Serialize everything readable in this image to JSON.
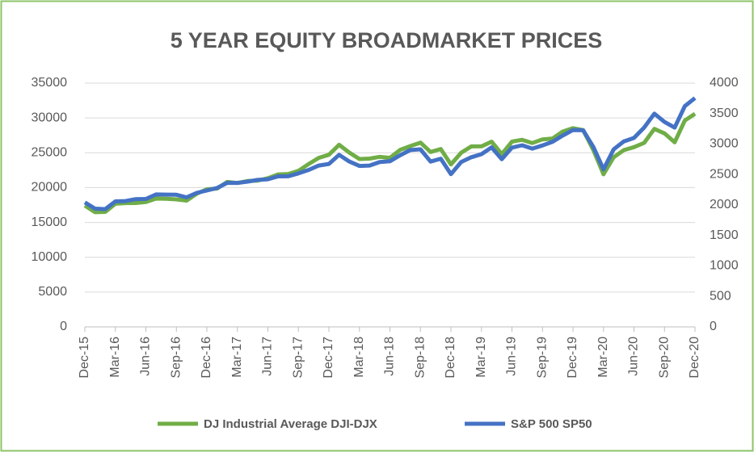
{
  "chart_data": {
    "type": "line",
    "title": "5 YEAR EQUITY BROADMARKET PRICES",
    "categories": [
      "Dec-15",
      null,
      null,
      "Mar-16",
      null,
      null,
      "Jun-16",
      null,
      null,
      "Sep-16",
      null,
      null,
      "Dec-16",
      null,
      null,
      "Mar-17",
      null,
      null,
      "Jun-17",
      null,
      null,
      "Sep-17",
      null,
      null,
      "Dec-17",
      null,
      null,
      "Mar-18",
      null,
      null,
      "Jun-18",
      null,
      null,
      "Sep-18",
      null,
      null,
      "Dec-18",
      null,
      null,
      "Mar-19",
      null,
      null,
      "Jun-19",
      null,
      null,
      "Sep-19",
      null,
      null,
      "Dec-19",
      null,
      null,
      "Mar-20",
      null,
      null,
      "Jun-20",
      null,
      null,
      "Sep-20",
      null,
      null,
      "Dec-20"
    ],
    "series": [
      {
        "name": "DJ Industrial Average DJI-DJX",
        "color": "#70ad47",
        "values": [
          17425,
          16466,
          16517,
          17685,
          17774,
          17787,
          17930,
          18432,
          18400,
          18308,
          18142,
          19124,
          19763,
          19864,
          20812,
          20663,
          20940,
          21009,
          21350,
          21891,
          21948,
          22405,
          23377,
          24272,
          24719,
          26149,
          25029,
          24103,
          24163,
          24416,
          24271,
          25415,
          25965,
          26458,
          25116,
          25538,
          23327,
          24999,
          25916,
          25929,
          26593,
          24815,
          26600,
          26864,
          26403,
          26917,
          27046,
          28051,
          28538,
          28256,
          25409,
          21917,
          24346,
          25383,
          25813,
          26428,
          28430,
          27782,
          26502,
          29638,
          30606
        ]
      },
      {
        "name": "S&P 500 SP50",
        "color": "#4472c4",
        "axis": "y2",
        "values": [
          2044,
          1940,
          1932,
          2060,
          2065,
          2097,
          2099,
          2174,
          2171,
          2168,
          2126,
          2199,
          2239,
          2279,
          2364,
          2363,
          2384,
          2412,
          2423,
          2470,
          2472,
          2519,
          2575,
          2648,
          2674,
          2824,
          2714,
          2641,
          2648,
          2705,
          2718,
          2816,
          2902,
          2914,
          2712,
          2760,
          2507,
          2704,
          2784,
          2834,
          2946,
          2752,
          2942,
          2980,
          2926,
          2977,
          3038,
          3141,
          3231,
          3226,
          2954,
          2585,
          2912,
          3044,
          3100,
          3271,
          3500,
          3363,
          3270,
          3622,
          3756
        ]
      }
    ],
    "ylim": [
      0,
      35000
    ],
    "yticks": [
      0,
      5000,
      10000,
      15000,
      20000,
      25000,
      30000,
      35000
    ],
    "y2lim": [
      0,
      4000
    ],
    "y2ticks": [
      0,
      500,
      1000,
      1500,
      2000,
      2500,
      3000,
      3500,
      4000
    ],
    "grid": true,
    "legend": "bottom"
  }
}
